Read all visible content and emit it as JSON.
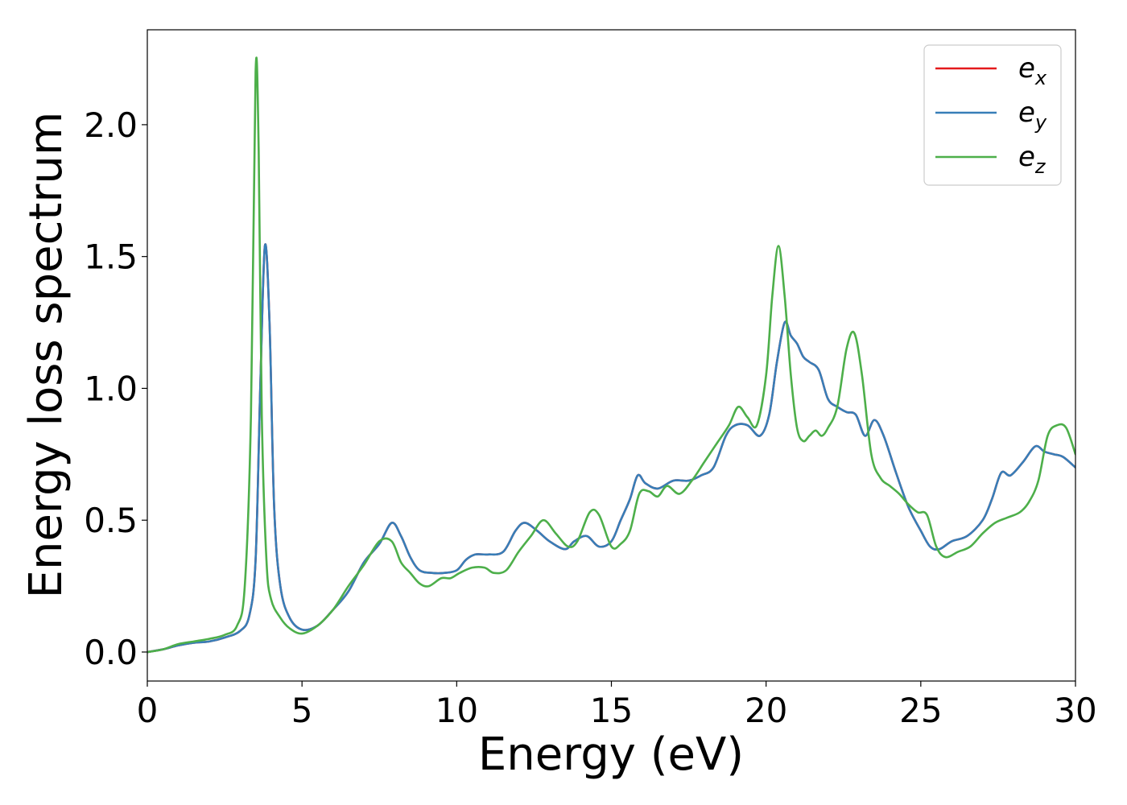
{
  "chart_data": {
    "type": "line",
    "xlabel": "Energy (eV)",
    "ylabel": "Energy loss spectrum",
    "xlim": [
      0,
      30
    ],
    "ylim": [
      -0.11,
      2.36
    ],
    "xticks": [
      0,
      5,
      10,
      15,
      20,
      25,
      30
    ],
    "yticks": [
      0.0,
      0.5,
      1.0,
      1.5,
      2.0
    ],
    "xtick_labels": [
      "0",
      "5",
      "10",
      "15",
      "20",
      "25",
      "30"
    ],
    "ytick_labels": [
      "0.0",
      "0.5",
      "1.0",
      "1.5",
      "2.0"
    ],
    "grid": false,
    "legend_position": "top-right",
    "series": [
      {
        "name": "e_x",
        "color": "#e41a1c",
        "x": [
          0,
          0.5,
          1,
          1.5,
          2,
          2.5,
          3,
          3.3,
          3.5,
          3.65,
          3.8,
          3.95,
          4.1,
          4.3,
          4.6,
          5,
          5.5,
          6,
          6.5,
          7,
          7.5,
          7.9,
          8.2,
          8.5,
          8.8,
          9.2,
          9.6,
          10,
          10.3,
          10.6,
          11,
          11.5,
          11.9,
          12.2,
          12.6,
          13,
          13.5,
          13.8,
          14.2,
          14.6,
          15,
          15.3,
          15.6,
          15.85,
          16.1,
          16.5,
          17,
          17.5,
          17.9,
          18.3,
          18.7,
          19,
          19.4,
          19.8,
          20.1,
          20.35,
          20.6,
          20.8,
          21,
          21.2,
          21.4,
          21.7,
          22,
          22.3,
          22.6,
          22.9,
          23.2,
          23.5,
          23.8,
          24.2,
          24.6,
          25,
          25.3,
          25.6,
          26,
          26.5,
          27,
          27.3,
          27.6,
          27.9,
          28.3,
          28.7,
          29,
          29.3,
          29.6,
          30
        ],
        "y": [
          0.0,
          0.01,
          0.025,
          0.035,
          0.04,
          0.055,
          0.08,
          0.14,
          0.35,
          1.0,
          1.54,
          1.25,
          0.55,
          0.25,
          0.13,
          0.085,
          0.1,
          0.16,
          0.23,
          0.34,
          0.41,
          0.49,
          0.44,
          0.36,
          0.31,
          0.3,
          0.3,
          0.31,
          0.35,
          0.37,
          0.37,
          0.38,
          0.46,
          0.49,
          0.46,
          0.42,
          0.39,
          0.42,
          0.44,
          0.4,
          0.42,
          0.5,
          0.58,
          0.67,
          0.64,
          0.62,
          0.65,
          0.65,
          0.67,
          0.7,
          0.82,
          0.86,
          0.86,
          0.82,
          0.9,
          1.1,
          1.25,
          1.2,
          1.17,
          1.12,
          1.1,
          1.07,
          0.96,
          0.93,
          0.91,
          0.9,
          0.82,
          0.88,
          0.82,
          0.68,
          0.55,
          0.46,
          0.4,
          0.39,
          0.42,
          0.44,
          0.5,
          0.58,
          0.68,
          0.67,
          0.72,
          0.78,
          0.76,
          0.75,
          0.74,
          0.7
        ]
      },
      {
        "name": "e_y",
        "color": "#377eb8",
        "x": [
          0,
          0.5,
          1,
          1.5,
          2,
          2.5,
          3,
          3.3,
          3.5,
          3.65,
          3.8,
          3.95,
          4.1,
          4.3,
          4.6,
          5,
          5.5,
          6,
          6.5,
          7,
          7.5,
          7.9,
          8.2,
          8.5,
          8.8,
          9.2,
          9.6,
          10,
          10.3,
          10.6,
          11,
          11.5,
          11.9,
          12.2,
          12.6,
          13,
          13.5,
          13.8,
          14.2,
          14.6,
          15,
          15.3,
          15.6,
          15.85,
          16.1,
          16.5,
          17,
          17.5,
          17.9,
          18.3,
          18.7,
          19,
          19.4,
          19.8,
          20.1,
          20.35,
          20.6,
          20.8,
          21,
          21.2,
          21.4,
          21.7,
          22,
          22.3,
          22.6,
          22.9,
          23.2,
          23.5,
          23.8,
          24.2,
          24.6,
          25,
          25.3,
          25.6,
          26,
          26.5,
          27,
          27.3,
          27.6,
          27.9,
          28.3,
          28.7,
          29,
          29.3,
          29.6,
          30
        ],
        "y": [
          0.0,
          0.01,
          0.025,
          0.035,
          0.04,
          0.055,
          0.08,
          0.14,
          0.35,
          1.0,
          1.54,
          1.25,
          0.55,
          0.25,
          0.13,
          0.085,
          0.1,
          0.16,
          0.23,
          0.34,
          0.41,
          0.49,
          0.44,
          0.36,
          0.31,
          0.3,
          0.3,
          0.31,
          0.35,
          0.37,
          0.37,
          0.38,
          0.46,
          0.49,
          0.46,
          0.42,
          0.39,
          0.42,
          0.44,
          0.4,
          0.42,
          0.5,
          0.58,
          0.67,
          0.64,
          0.62,
          0.65,
          0.65,
          0.67,
          0.7,
          0.82,
          0.86,
          0.86,
          0.82,
          0.9,
          1.1,
          1.25,
          1.2,
          1.17,
          1.12,
          1.1,
          1.07,
          0.96,
          0.93,
          0.91,
          0.9,
          0.82,
          0.88,
          0.82,
          0.68,
          0.55,
          0.46,
          0.4,
          0.39,
          0.42,
          0.44,
          0.5,
          0.58,
          0.68,
          0.67,
          0.72,
          0.78,
          0.76,
          0.75,
          0.74,
          0.7
        ]
      },
      {
        "name": "e_z",
        "color": "#4daf4a",
        "x": [
          0,
          0.5,
          1,
          1.5,
          2,
          2.5,
          2.9,
          3.15,
          3.35,
          3.5,
          3.6,
          3.7,
          3.85,
          4.0,
          4.3,
          4.6,
          5,
          5.5,
          6,
          6.5,
          7,
          7.5,
          7.9,
          8.2,
          8.5,
          8.8,
          9.1,
          9.5,
          9.8,
          10.1,
          10.5,
          10.9,
          11.2,
          11.6,
          12,
          12.4,
          12.8,
          13.2,
          13.6,
          13.9,
          14.3,
          14.6,
          15,
          15.3,
          15.6,
          15.9,
          16.2,
          16.5,
          16.8,
          17.2,
          17.6,
          18,
          18.4,
          18.8,
          19.1,
          19.4,
          19.7,
          20.0,
          20.2,
          20.4,
          20.6,
          20.8,
          21.0,
          21.2,
          21.4,
          21.6,
          21.8,
          22.0,
          22.3,
          22.6,
          22.85,
          23.1,
          23.4,
          23.7,
          24.0,
          24.3,
          24.6,
          24.9,
          25.2,
          25.5,
          25.8,
          26.2,
          26.6,
          27.0,
          27.4,
          27.8,
          28.2,
          28.5,
          28.8,
          29.1,
          29.4,
          29.7,
          30
        ],
        "y": [
          0.0,
          0.01,
          0.03,
          0.04,
          0.05,
          0.065,
          0.1,
          0.25,
          0.9,
          2.2,
          1.9,
          0.9,
          0.35,
          0.2,
          0.13,
          0.09,
          0.07,
          0.1,
          0.16,
          0.25,
          0.33,
          0.42,
          0.42,
          0.34,
          0.3,
          0.26,
          0.25,
          0.28,
          0.28,
          0.3,
          0.32,
          0.32,
          0.3,
          0.31,
          0.38,
          0.44,
          0.5,
          0.45,
          0.4,
          0.42,
          0.53,
          0.52,
          0.4,
          0.41,
          0.46,
          0.6,
          0.61,
          0.59,
          0.63,
          0.6,
          0.65,
          0.72,
          0.79,
          0.86,
          0.93,
          0.89,
          0.86,
          1.05,
          1.35,
          1.54,
          1.35,
          1.05,
          0.85,
          0.8,
          0.82,
          0.84,
          0.82,
          0.85,
          0.93,
          1.15,
          1.21,
          1.05,
          0.75,
          0.66,
          0.63,
          0.6,
          0.56,
          0.53,
          0.52,
          0.4,
          0.36,
          0.38,
          0.4,
          0.45,
          0.49,
          0.51,
          0.53,
          0.57,
          0.65,
          0.82,
          0.86,
          0.85,
          0.75
        ]
      }
    ]
  }
}
